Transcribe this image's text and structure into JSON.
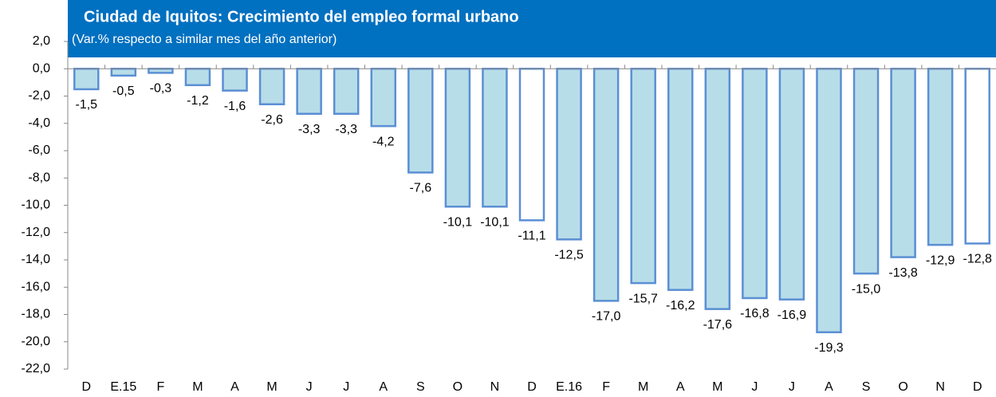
{
  "chart_data": {
    "type": "bar",
    "title": "Ciudad de Iquitos: Crecimiento del empleo formal urbano",
    "subtitle": "(Var.% respecto a similar mes del año anterior)",
    "categories": [
      "D",
      "E.15",
      "F",
      "M",
      "A",
      "M",
      "J",
      "J",
      "A",
      "S",
      "O",
      "N",
      "D",
      "E.16",
      "F",
      "M",
      "A",
      "M",
      "J",
      "J",
      "A",
      "S",
      "O",
      "N",
      "D"
    ],
    "values": [
      -1.5,
      -0.5,
      -0.3,
      -1.2,
      -1.6,
      -2.6,
      -3.3,
      -3.3,
      -4.2,
      -7.6,
      -10.1,
      -10.1,
      -11.1,
      -12.5,
      -17.0,
      -15.7,
      -16.2,
      -17.6,
      -16.8,
      -16.9,
      -19.3,
      -15.0,
      -13.8,
      -12.9,
      -12.8
    ],
    "value_labels": [
      "-1,5",
      "-0,5",
      "-0,3",
      "-1,2",
      "-1,6",
      "-2,6",
      "-3,3",
      "-3,3",
      "-4,2",
      "-7,6",
      "-10,1",
      "-10,1",
      "-11,1",
      "-12,5",
      "-17,0",
      "-15,7",
      "-16,2",
      "-17,6",
      "-16,8",
      "-16,9",
      "-19,3",
      "-15,0",
      "-13,8",
      "-12,9",
      "-12,8"
    ],
    "colors": [
      "#b7dde8",
      "#b7dde8",
      "#b7dde8",
      "#b7dde8",
      "#b7dde8",
      "#b7dde8",
      "#b7dde8",
      "#b7dde8",
      "#b7dde8",
      "#b7dde8",
      "#b7dde8",
      "#b7dde8",
      "#ffffff",
      "#b7dde8",
      "#b7dde8",
      "#b7dde8",
      "#b7dde8",
      "#b7dde8",
      "#b7dde8",
      "#b7dde8",
      "#b7dde8",
      "#b7dde8",
      "#b7dde8",
      "#b7dde8",
      "#ffffff"
    ],
    "edge_color": "#5b8fd4",
    "ylim": [
      -22,
      2
    ],
    "yticks": [
      {
        "value": 2,
        "label": "2,0"
      },
      {
        "value": 0,
        "label": "0,0"
      },
      {
        "value": -2,
        "label": "-2,0"
      },
      {
        "value": -4,
        "label": "-4,0"
      },
      {
        "value": -6,
        "label": "-6,0"
      },
      {
        "value": -8,
        "label": "-8,0"
      },
      {
        "value": -10,
        "label": "-10,0"
      },
      {
        "value": -12,
        "label": "-12,0"
      },
      {
        "value": -14,
        "label": "-14,0"
      },
      {
        "value": -16,
        "label": "-16,0"
      },
      {
        "value": -18,
        "label": "-18,0"
      },
      {
        "value": -20,
        "label": "-20,0"
      },
      {
        "value": -22,
        "label": "-22,0"
      }
    ]
  }
}
